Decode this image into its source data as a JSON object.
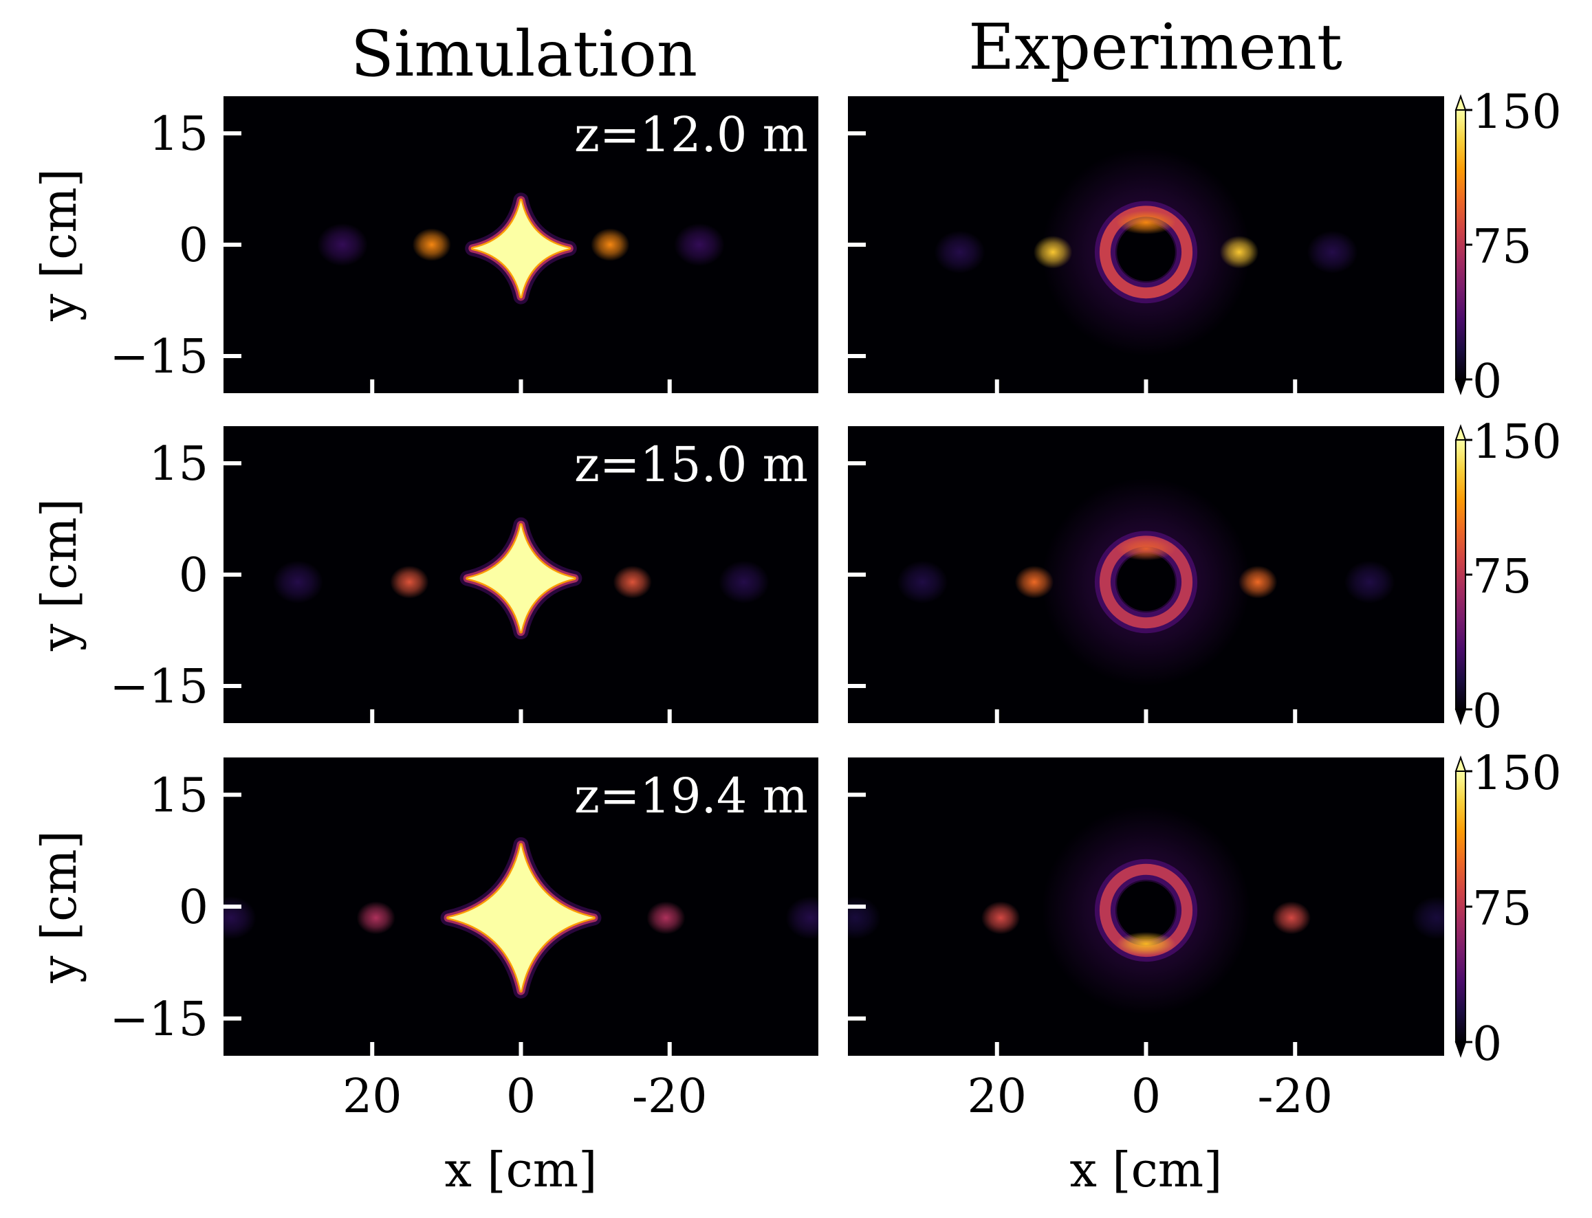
{
  "column_titles": [
    "Simulation",
    "Experiment"
  ],
  "colors": {
    "colormap": "inferno",
    "stops": [
      "#000004",
      "#1b0c41",
      "#4a0c6b",
      "#781c6d",
      "#a52c60",
      "#cf4446",
      "#ed6925",
      "#fb9b06",
      "#f7d13d",
      "#fcffa4"
    ]
  },
  "chart_data": [
    {
      "type": "heatmap",
      "panel": "simulation",
      "row": 0,
      "annotation": "z=12.0 m",
      "xlabel": "",
      "ylabel": "y [cm]",
      "xlim": [
        40,
        -40
      ],
      "ylim": [
        -20,
        20
      ],
      "xticks": [
        20,
        0,
        -20
      ],
      "xtick_labels": [],
      "yticks": [
        15,
        0,
        -15
      ],
      "ytick_labels": [
        "15",
        "0",
        "−15"
      ],
      "features": [
        {
          "shape": "diamond",
          "x": 0,
          "y": -0.5,
          "half_width": 6.5,
          "half_height": 6.5,
          "intensity": 150
        },
        {
          "shape": "spot",
          "x": 12,
          "y": 0,
          "intensity": 110
        },
        {
          "shape": "spot",
          "x": -12,
          "y": 0,
          "intensity": 110
        },
        {
          "shape": "spot",
          "x": 24,
          "y": 0,
          "intensity": 25
        },
        {
          "shape": "spot",
          "x": -24,
          "y": 0,
          "intensity": 25
        }
      ]
    },
    {
      "type": "heatmap",
      "panel": "experiment",
      "row": 0,
      "xlim": [
        40,
        -40
      ],
      "ylim": [
        -20,
        20
      ],
      "xticks": [
        20,
        0,
        -20
      ],
      "yticks": [
        15,
        0,
        -15
      ],
      "colorbar": {
        "min": 0,
        "max": 150,
        "ticks": [
          0,
          75,
          150
        ],
        "extend": "both"
      },
      "features": [
        {
          "shape": "ring",
          "x": 0,
          "y": -1,
          "radius": 5.5,
          "intensity": 80,
          "bright_spot": {
            "x": 0,
            "y": 3,
            "intensity": 110
          }
        },
        {
          "shape": "spot",
          "x": 12.5,
          "y": -1,
          "intensity": 130
        },
        {
          "shape": "spot",
          "x": -12.5,
          "y": -1,
          "intensity": 130
        },
        {
          "shape": "spot",
          "x": 25,
          "y": -1,
          "intensity": 20
        },
        {
          "shape": "spot",
          "x": -25,
          "y": -1,
          "intensity": 20
        }
      ]
    },
    {
      "type": "heatmap",
      "panel": "simulation",
      "row": 1,
      "annotation": "z=15.0 m",
      "xlabel": "",
      "ylabel": "y [cm]",
      "xlim": [
        40,
        -40
      ],
      "ylim": [
        -20,
        20
      ],
      "xticks": [
        20,
        0,
        -20
      ],
      "xtick_labels": [],
      "yticks": [
        15,
        0,
        -15
      ],
      "ytick_labels": [
        "15",
        "0",
        "−15"
      ],
      "features": [
        {
          "shape": "diamond",
          "x": 0,
          "y": -0.5,
          "half_width": 7.2,
          "half_height": 7.2,
          "intensity": 150
        },
        {
          "shape": "spot",
          "x": 15,
          "y": -1,
          "intensity": 90
        },
        {
          "shape": "spot",
          "x": -15,
          "y": -1,
          "intensity": 90
        },
        {
          "shape": "spot",
          "x": 30,
          "y": -1,
          "intensity": 20
        },
        {
          "shape": "spot",
          "x": -30,
          "y": -1,
          "intensity": 20
        }
      ]
    },
    {
      "type": "heatmap",
      "panel": "experiment",
      "row": 1,
      "xlim": [
        40,
        -40
      ],
      "ylim": [
        -20,
        20
      ],
      "xticks": [
        20,
        0,
        -20
      ],
      "yticks": [
        15,
        0,
        -15
      ],
      "colorbar": {
        "min": 0,
        "max": 150,
        "ticks": [
          0,
          75,
          150
        ],
        "extend": "both"
      },
      "features": [
        {
          "shape": "ring",
          "x": 0,
          "y": -1,
          "radius": 5.5,
          "intensity": 75,
          "bright_spot": {
            "x": 0,
            "y": 3.5,
            "intensity": 95
          }
        },
        {
          "shape": "spot",
          "x": 15,
          "y": -1,
          "intensity": 100
        },
        {
          "shape": "spot",
          "x": -15,
          "y": -1,
          "intensity": 100
        },
        {
          "shape": "spot",
          "x": 30,
          "y": -1,
          "intensity": 18
        },
        {
          "shape": "spot",
          "x": -30,
          "y": -1,
          "intensity": 18
        }
      ]
    },
    {
      "type": "heatmap",
      "panel": "simulation",
      "row": 2,
      "annotation": "z=19.4 m",
      "xlabel": "x [cm]",
      "ylabel": "y [cm]",
      "xlim": [
        40,
        -40
      ],
      "ylim": [
        -20,
        20
      ],
      "xticks": [
        20,
        0,
        -20
      ],
      "xtick_labels": [
        "20",
        "0",
        "-20"
      ],
      "yticks": [
        15,
        0,
        -15
      ],
      "ytick_labels": [
        "15",
        "0",
        "−15"
      ],
      "features": [
        {
          "shape": "diamond",
          "x": 0,
          "y": -1.5,
          "half_width": 9.8,
          "half_height": 9.8,
          "intensity": 150
        },
        {
          "shape": "spot",
          "x": 19.5,
          "y": -1.5,
          "intensity": 70
        },
        {
          "shape": "spot",
          "x": -19.5,
          "y": -1.5,
          "intensity": 70
        },
        {
          "shape": "spot",
          "x": 39,
          "y": -1.5,
          "intensity": 20
        },
        {
          "shape": "spot",
          "x": -39,
          "y": -1.5,
          "intensity": 20
        }
      ]
    },
    {
      "type": "heatmap",
      "panel": "experiment",
      "row": 2,
      "xlabel": "x [cm]",
      "xlim": [
        40,
        -40
      ],
      "ylim": [
        -20,
        20
      ],
      "xticks": [
        20,
        0,
        -20
      ],
      "xtick_labels": [
        "20",
        "0",
        "-20"
      ],
      "yticks": [
        15,
        0,
        -15
      ],
      "colorbar": {
        "min": 0,
        "max": 150,
        "ticks": [
          0,
          75,
          150
        ],
        "extend": "both"
      },
      "features": [
        {
          "shape": "ring",
          "x": 0,
          "y": -0.5,
          "radius": 5.5,
          "intensity": 75,
          "bright_spot": {
            "x": 0,
            "y": -5,
            "intensity": 125
          }
        },
        {
          "shape": "spot",
          "x": 19.5,
          "y": -1.5,
          "intensity": 85
        },
        {
          "shape": "spot",
          "x": -19.5,
          "y": -1.5,
          "intensity": 85
        },
        {
          "shape": "spot",
          "x": 39,
          "y": -1.5,
          "intensity": 15
        },
        {
          "shape": "spot",
          "x": -39,
          "y": -1.5,
          "intensity": 15
        }
      ]
    }
  ],
  "colorbar_labels": [
    "0",
    "75",
    "150"
  ]
}
